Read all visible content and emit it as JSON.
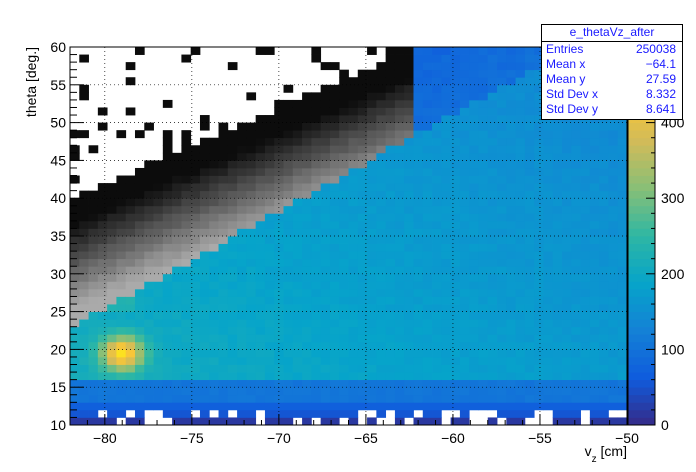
{
  "chart_data": {
    "type": "heatmap",
    "title": "",
    "xlabel": "v_z [cm]",
    "ylabel": "theta [deg.]",
    "xlim": [
      -82,
      -50
    ],
    "ylim": [
      10,
      60
    ],
    "x_ticks": [
      -80,
      -75,
      -70,
      -65,
      -60,
      -55,
      -50
    ],
    "y_ticks": [
      10,
      15,
      20,
      25,
      30,
      35,
      40,
      45,
      50,
      55,
      60
    ],
    "z_ticks": [
      0,
      100,
      200,
      300,
      400
    ],
    "zlim": [
      0,
      500
    ],
    "bins": {
      "x": 60,
      "y": 50
    },
    "grid": true,
    "colorbar_position": "right",
    "colormap": "kBird",
    "features": {
      "low_angle_cut_deg": 12,
      "peak": {
        "vz": -79,
        "theta": 19.5,
        "value": 460
      },
      "boundary_line": {
        "from": [
          -78,
          28
        ],
        "to": [
          -64,
          46
        ]
      },
      "high_angle_edge": {
        "vz_at_60deg": -62,
        "vz_at_50deg": -72
      }
    }
  },
  "stats_box": {
    "title": "e_thetaVz_after",
    "rows": [
      {
        "label": "Entries",
        "value": "250038"
      },
      {
        "label": "Mean x",
        "value": "−64.1"
      },
      {
        "label": "Mean y",
        "value": "27.59"
      },
      {
        "label": "Std Dev x",
        "value": "8.332"
      },
      {
        "label": "Std Dev y",
        "value": "8.641"
      }
    ]
  },
  "axis_text": {
    "x_title_main": "v",
    "x_title_sub": "z",
    "x_title_unit": " [cm]",
    "y_title": "theta [deg.]",
    "x_tick_labels": [
      "−80",
      "−75",
      "−70",
      "−65",
      "−60",
      "−55",
      "−50"
    ],
    "y_tick_labels": [
      "10",
      "15",
      "20",
      "25",
      "30",
      "35",
      "40",
      "45",
      "50",
      "55",
      "60"
    ],
    "z_tick_labels": [
      "0",
      "100",
      "200",
      "300",
      "400"
    ]
  },
  "colors": {
    "frame": "#000000",
    "stats_text": "#1a1aff",
    "palette": [
      "#352a87",
      "#0f5cdd",
      "#1481d6",
      "#06a4ca",
      "#2eb7a4",
      "#87bf77",
      "#d1bb59",
      "#fec832",
      "#f9fb0e"
    ]
  }
}
